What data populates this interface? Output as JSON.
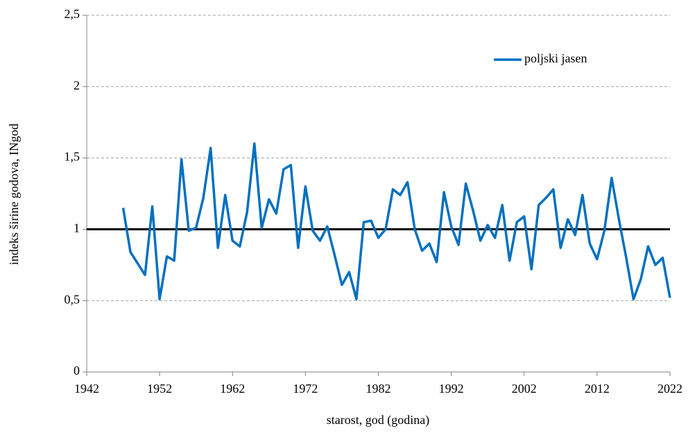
{
  "chart_data": {
    "type": "line",
    "x_label": "starost, god (godina)",
    "y_label": "indeks širine godova, INgod",
    "x": [
      1947,
      1948,
      1949,
      1950,
      1951,
      1952,
      1953,
      1954,
      1955,
      1956,
      1957,
      1958,
      1959,
      1960,
      1961,
      1962,
      1963,
      1964,
      1965,
      1966,
      1967,
      1968,
      1969,
      1970,
      1971,
      1972,
      1973,
      1974,
      1975,
      1976,
      1977,
      1978,
      1979,
      1980,
      1981,
      1982,
      1983,
      1984,
      1985,
      1986,
      1987,
      1988,
      1989,
      1990,
      1991,
      1992,
      1993,
      1994,
      1995,
      1996,
      1997,
      1998,
      1999,
      2000,
      2001,
      2002,
      2003,
      2004,
      2005,
      2006,
      2007,
      2008,
      2009,
      2010,
      2011,
      2012,
      2013,
      2014,
      2015,
      2016,
      2017,
      2018,
      2019,
      2020,
      2021,
      2022
    ],
    "series": [
      {
        "name": "poljski jasen",
        "color": "#0070c0",
        "values": [
          1.15,
          0.84,
          0.76,
          0.68,
          1.16,
          0.51,
          0.81,
          0.78,
          1.49,
          0.99,
          1.01,
          1.22,
          1.57,
          0.87,
          1.24,
          0.92,
          0.88,
          1.12,
          1.6,
          1.01,
          1.21,
          1.11,
          1.42,
          1.45,
          0.87,
          1.3,
          0.99,
          0.92,
          1.02,
          0.82,
          0.61,
          0.7,
          0.51,
          1.05,
          1.06,
          0.94,
          1.0,
          1.28,
          1.24,
          1.33,
          1.0,
          0.85,
          0.9,
          0.77,
          1.26,
          1.02,
          0.89,
          1.32,
          1.13,
          0.92,
          1.03,
          0.94,
          1.17,
          0.78,
          1.05,
          1.09,
          0.72,
          1.17,
          1.22,
          1.28,
          0.87,
          1.07,
          0.96,
          1.24,
          0.9,
          0.79,
          0.99,
          1.36,
          1.07,
          0.8,
          0.51,
          0.65,
          0.88,
          0.75,
          0.8,
          0.52
        ]
      }
    ],
    "reference_line": {
      "value": 1,
      "color": "#000000"
    },
    "xlim": [
      1942,
      2022
    ],
    "xticks": [
      1942,
      1952,
      1962,
      1972,
      1982,
      1992,
      2002,
      2012,
      2022
    ],
    "ylim": [
      0,
      2.5
    ],
    "yticks": [
      0,
      {
        "value": 0.5,
        "label": "0,5"
      },
      1,
      {
        "value": 1.5,
        "label": "1,5"
      },
      2,
      {
        "value": 2.5,
        "label": "2,5"
      }
    ],
    "grid": true,
    "legend": "top-right"
  }
}
